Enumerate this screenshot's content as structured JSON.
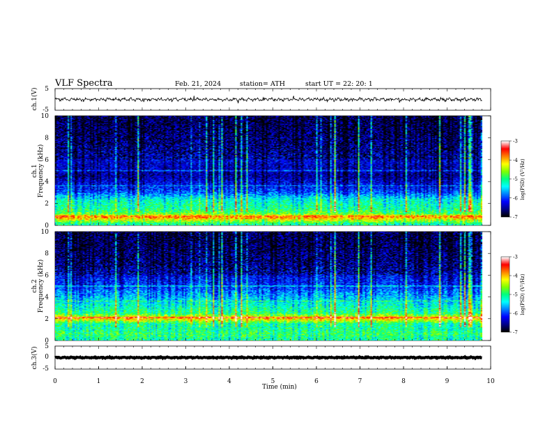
{
  "header": {
    "title": "VLF  Spectra",
    "date": "Feb. 21, 2024",
    "station": "station= ATH",
    "start": "start  UT  =   22: 20: 1"
  },
  "colors": {
    "background": "#000000",
    "waveform": "#000000",
    "colormap": [
      "#000000",
      "#00008b",
      "#0000ff",
      "#0080ff",
      "#00ffff",
      "#00ff80",
      "#80ff00",
      "#ffff00",
      "#ff8000",
      "#ff0000",
      "#ffffff"
    ]
  },
  "chart_data": [
    {
      "type": "line",
      "name": "ch1-waveform",
      "ylabel": "ch.1(V)",
      "ylim": [
        -5,
        5
      ],
      "yticks": [
        "5",
        "-5"
      ],
      "xlim": [
        0,
        10
      ],
      "x_extent": [
        0,
        9.8
      ],
      "approx_level": 0,
      "approx_amplitude": 1
    },
    {
      "type": "heatmap",
      "name": "ch1-spectrogram",
      "ylabel": "ch.1\nFrequency (kHz)",
      "ylim": [
        0,
        10
      ],
      "yticks": [
        "0",
        "2",
        "4",
        "6",
        "8",
        "10"
      ],
      "xlim": [
        0,
        10
      ],
      "x_extent": [
        0,
        9.8
      ],
      "colorbar": {
        "label": "log(PSD) (V²/Hz)",
        "range": [
          -7,
          -3
        ],
        "ticks": [
          "-3",
          "-4",
          "-5",
          "-6",
          "-7"
        ]
      },
      "bands": [
        {
          "f": 0.1,
          "level": -5.0
        },
        {
          "f": 0.5,
          "level": -4.2
        },
        {
          "f": 0.8,
          "level": -3.6
        },
        {
          "f": 1.0,
          "level": -4.6
        },
        {
          "f": 1.5,
          "level": -5.0
        },
        {
          "f": 2.0,
          "level": -5.1
        },
        {
          "f": 2.3,
          "level": -5.2
        },
        {
          "f": 3.0,
          "level": -5.9
        },
        {
          "f": 4.5,
          "level": -6.5
        },
        {
          "f": 6.0,
          "level": -6.3
        },
        {
          "f": 7.0,
          "level": -6.4
        },
        {
          "f": 9.0,
          "level": -6.6
        }
      ]
    },
    {
      "type": "heatmap",
      "name": "ch2-spectrogram",
      "ylabel": "ch.2\nFrequency (kHz)",
      "ylim": [
        0,
        10
      ],
      "yticks": [
        "0",
        "2",
        "4",
        "6",
        "8",
        "10"
      ],
      "xlim": [
        0,
        10
      ],
      "x_extent": [
        0,
        9.8
      ],
      "colorbar": {
        "label": "log(PSD) (V²/Hz)",
        "range": [
          -7,
          -3
        ],
        "ticks": [
          "-3",
          "-4",
          "-5",
          "-6",
          "-7"
        ]
      },
      "bands": [
        {
          "f": 0.1,
          "level": -5.0
        },
        {
          "f": 0.6,
          "level": -4.8
        },
        {
          "f": 1.0,
          "level": -5.0
        },
        {
          "f": 1.5,
          "level": -5.0
        },
        {
          "f": 2.0,
          "level": -3.9
        },
        {
          "f": 2.5,
          "level": -4.9
        },
        {
          "f": 3.5,
          "level": -5.3
        },
        {
          "f": 5.0,
          "level": -6.0
        },
        {
          "f": 7.0,
          "level": -6.4
        },
        {
          "f": 9.0,
          "level": -6.6
        }
      ]
    },
    {
      "type": "line",
      "name": "ch3-waveform",
      "ylabel": "ch.3(V)",
      "ylim": [
        -5,
        5
      ],
      "yticks": [
        "5",
        "0",
        "-5"
      ],
      "xlim": [
        0,
        10
      ],
      "x_extent": [
        0,
        9.8
      ],
      "approx_level": 0,
      "approx_amplitude": 0.3
    }
  ],
  "xaxis": {
    "label": "Time  (min)",
    "ticks": [
      "0",
      "1",
      "2",
      "3",
      "4",
      "5",
      "6",
      "7",
      "8",
      "9",
      "10"
    ]
  }
}
